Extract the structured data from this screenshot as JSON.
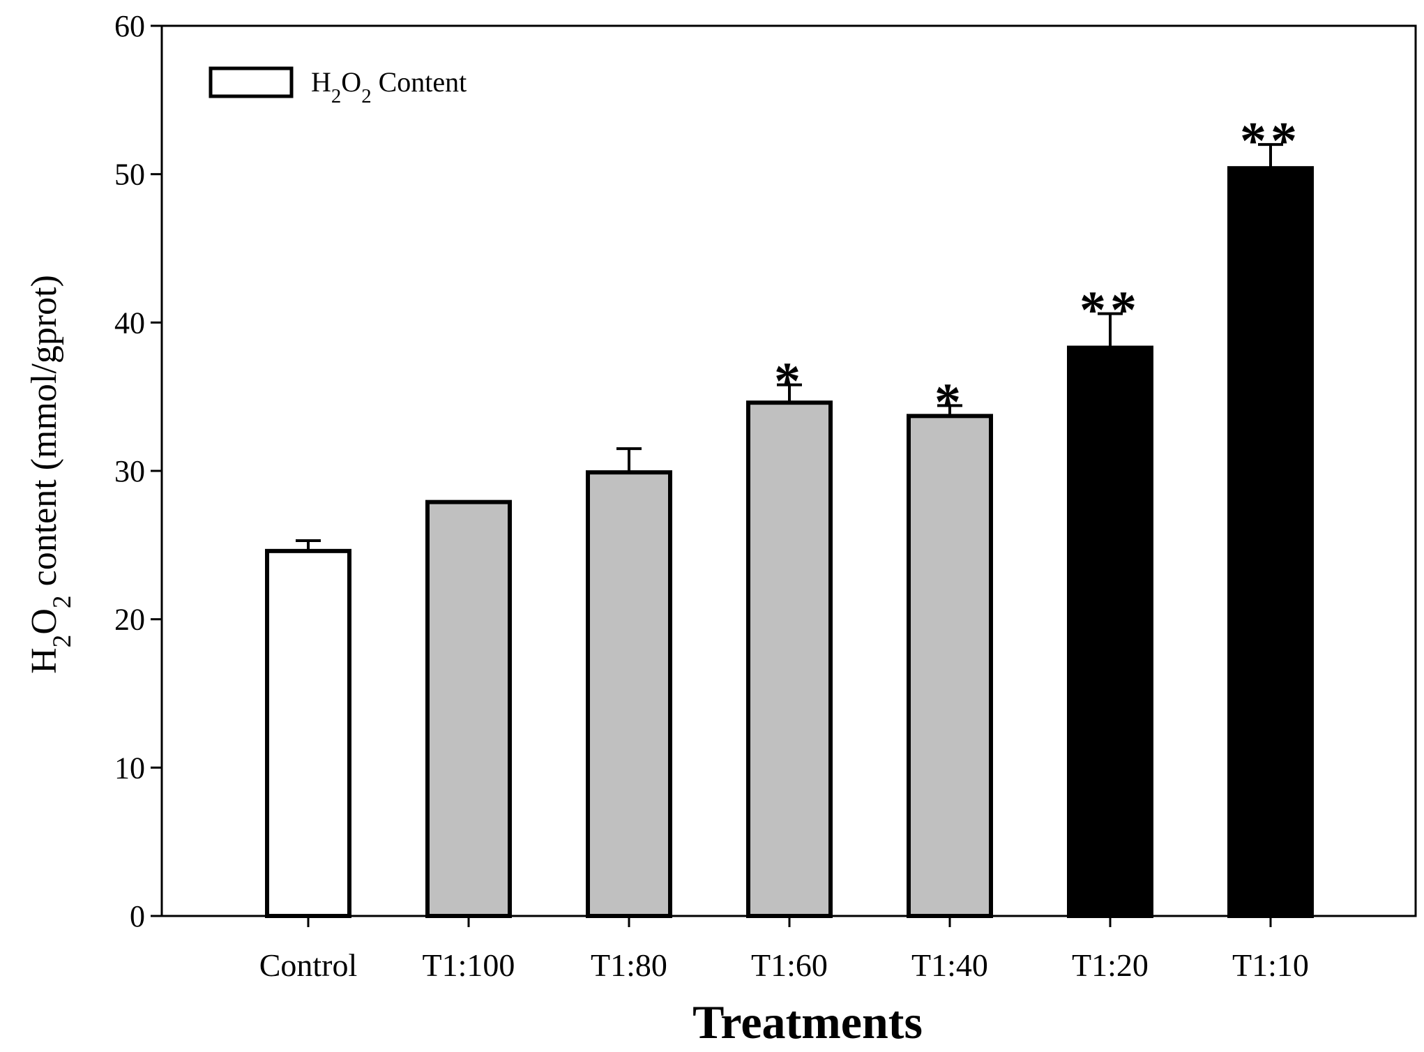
{
  "chart_data": {
    "type": "bar",
    "title": "",
    "xlabel": "Treatments",
    "ylabel": "H2O2 content (mmol/gprot)",
    "ylim": [
      0,
      60
    ],
    "yticks": [
      "0",
      "10",
      "20",
      "30",
      "40",
      "50",
      "60"
    ],
    "legend": {
      "label": "H2O2 Content",
      "position": "top-left"
    },
    "categories": [
      "Control",
      "T1:100",
      "T1:80",
      "T1:60",
      "T1:40",
      "T1:20",
      "T1:10"
    ],
    "values": [
      24.6,
      27.9,
      29.9,
      34.6,
      33.7,
      38.3,
      50.4
    ],
    "errors": [
      0.7,
      0.0,
      1.6,
      1.2,
      0.7,
      2.3,
      1.6
    ],
    "significance": [
      "",
      "",
      "",
      "*",
      "*",
      "**",
      "**"
    ],
    "colors": [
      "#ffffff",
      "#c0c0c0",
      "#c0c0c0",
      "#c0c0c0",
      "#c0c0c0",
      "#000000",
      "#000000"
    ],
    "grid": false
  }
}
